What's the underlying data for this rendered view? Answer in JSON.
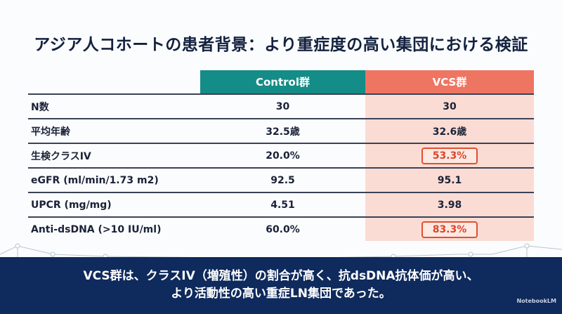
{
  "title": "アジア人コホートの患者背景：より重症度の高い集団における検証",
  "table": {
    "headers": [
      "",
      "Control群",
      "VCS群"
    ],
    "rows": [
      {
        "label": "N数",
        "control": "30",
        "vcs": "30",
        "highlight": false
      },
      {
        "label": "平均年齢",
        "control": "32.5歳",
        "vcs": "32.6歳",
        "highlight": false
      },
      {
        "label": "生検クラスIV",
        "control": "20.0%",
        "vcs": "53.3%",
        "highlight": true
      },
      {
        "label": "eGFR (ml/min/1.73 m2)",
        "control": "92.5",
        "vcs": "95.1",
        "highlight": false
      },
      {
        "label": "UPCR (mg/mg)",
        "control": "4.51",
        "vcs": "3.98",
        "highlight": false
      },
      {
        "label": "Anti-dsDNA (>10 IU/ml)",
        "control": "60.0%",
        "vcs": "83.3%",
        "highlight": true
      }
    ]
  },
  "conclusion": {
    "line1": "VCS群は、クラスIV（増殖性）の割合が高く、抗dsDNA抗体価が高い、",
    "line2": "より活動性の高い重症LN集団であった。"
  },
  "logo": "NotebookLM"
}
